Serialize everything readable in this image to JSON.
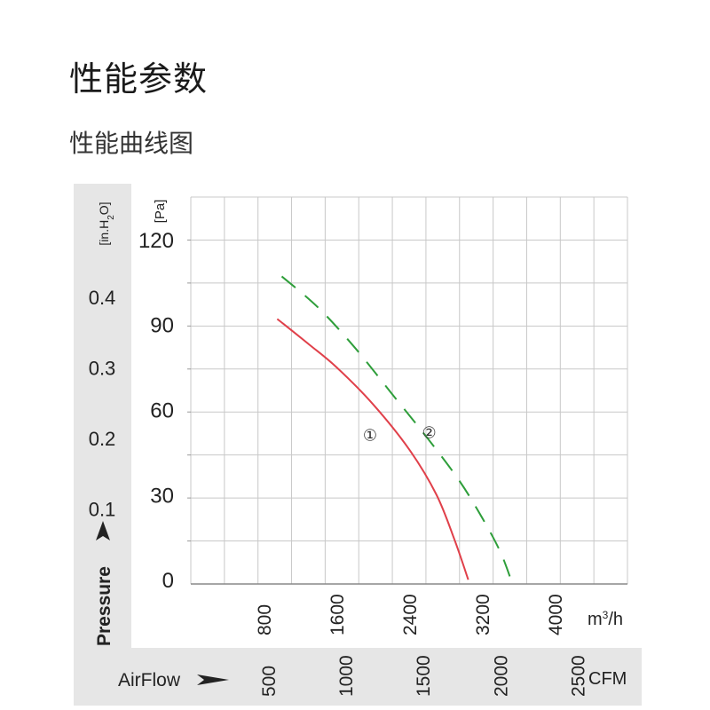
{
  "page": {
    "title": "性能参数",
    "subtitle": "性能曲线图"
  },
  "chart_data": {
    "type": "line",
    "x": {
      "label": "m³/h",
      "unit_base": "m",
      "unit_exp": "3",
      "unit_tail": "/h",
      "ticks": [
        800,
        1600,
        2400,
        3200,
        4000
      ],
      "range": [
        0,
        4800
      ]
    },
    "x2": {
      "label": "AirFlow",
      "unit": "CFM",
      "ticks": [
        500,
        1000,
        1500,
        2000,
        2500
      ],
      "m3h_per_cfm": 1.699
    },
    "y": {
      "unit": "[Pa]",
      "ticks": [
        0,
        30,
        60,
        90,
        120
      ],
      "range": [
        -1.5,
        135
      ]
    },
    "y2": {
      "label": "Pressure",
      "unit": "[in.H2O]",
      "unit_main": "[in.H",
      "unit_sub": "2",
      "unit_end": "O]",
      "ticks": [
        "0.1",
        "0.2",
        "0.3",
        "0.4"
      ],
      "pa_per_inh2o": 249.1
    },
    "grid": true,
    "series": [
      {
        "name": "①",
        "color": "#e0404a",
        "dashed": false,
        "points": [
          [
            950,
            92
          ],
          [
            1300,
            83
          ],
          [
            1600,
            75
          ],
          [
            2000,
            62
          ],
          [
            2400,
            46
          ],
          [
            2700,
            30
          ],
          [
            2900,
            14
          ],
          [
            3050,
            0
          ]
        ]
      },
      {
        "name": "②",
        "color": "#2e9e3a",
        "dashed": true,
        "points": [
          [
            1000,
            107
          ],
          [
            1400,
            96
          ],
          [
            1800,
            82
          ],
          [
            2200,
            66
          ],
          [
            2600,
            50
          ],
          [
            2950,
            35
          ],
          [
            3200,
            22
          ],
          [
            3400,
            10
          ],
          [
            3520,
            0
          ]
        ]
      }
    ]
  }
}
